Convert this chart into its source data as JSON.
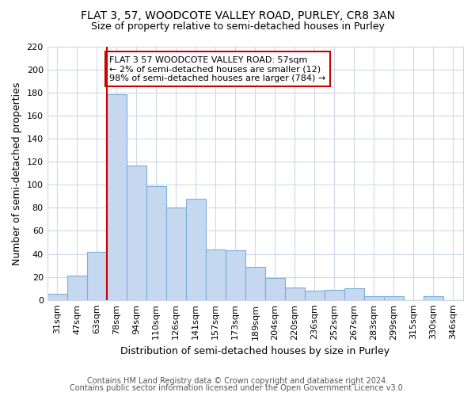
{
  "title": "FLAT 3, 57, WOODCOTE VALLEY ROAD, PURLEY, CR8 3AN",
  "subtitle": "Size of property relative to semi-detached houses in Purley",
  "xlabel": "Distribution of semi-detached houses by size in Purley",
  "ylabel": "Number of semi-detached properties",
  "categories": [
    "31sqm",
    "47sqm",
    "63sqm",
    "78sqm",
    "94sqm",
    "110sqm",
    "126sqm",
    "141sqm",
    "157sqm",
    "173sqm",
    "189sqm",
    "204sqm",
    "220sqm",
    "236sqm",
    "252sqm",
    "267sqm",
    "283sqm",
    "299sqm",
    "315sqm",
    "330sqm",
    "346sqm"
  ],
  "values": [
    5,
    21,
    42,
    179,
    117,
    99,
    80,
    88,
    44,
    43,
    29,
    19,
    11,
    8,
    9,
    10,
    3,
    3,
    0,
    3,
    0
  ],
  "bar_color": "#c5d8f0",
  "bar_edge_color": "#7ab0d8",
  "vline_x": 2.5,
  "vline_color": "#cc0000",
  "annotation_text": "FLAT 3 57 WOODCOTE VALLEY ROAD: 57sqm\n← 2% of semi-detached houses are smaller (12)\n98% of semi-detached houses are larger (784) →",
  "annotation_box_edge_color": "#cc0000",
  "ylim": [
    0,
    220
  ],
  "yticks": [
    0,
    20,
    40,
    60,
    80,
    100,
    120,
    140,
    160,
    180,
    200,
    220
  ],
  "footer1": "Contains HM Land Registry data © Crown copyright and database right 2024.",
  "footer2": "Contains public sector information licensed under the Open Government Licence v3.0.",
  "bg_color": "#ffffff",
  "plot_bg_color": "#ffffff",
  "grid_color": "#d0d8e8",
  "title_fontsize": 10,
  "subtitle_fontsize": 9,
  "axis_label_fontsize": 9,
  "tick_fontsize": 8,
  "annotation_fontsize": 8,
  "footer_fontsize": 7
}
